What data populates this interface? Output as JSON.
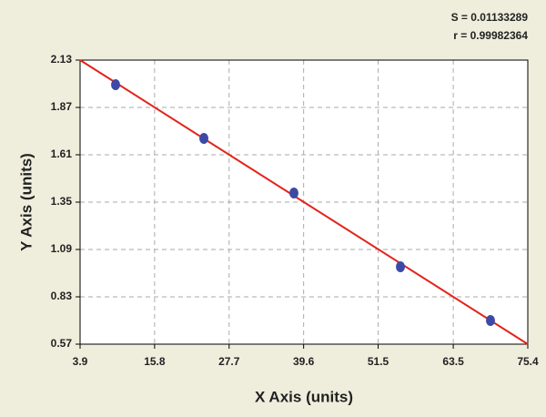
{
  "chart_data": {
    "type": "scatter",
    "xlabel": "X Axis (units)",
    "ylabel": "Y Axis (units)",
    "annotations": [
      "S = 0.01133289",
      "r = 0.99982364"
    ],
    "xlim": [
      3.9,
      75.4
    ],
    "xticks": [
      3.9,
      15.8,
      27.7,
      39.6,
      51.5,
      63.5,
      75.4
    ],
    "ylim": [
      0.57,
      2.13
    ],
    "yticks": [
      2.13,
      1.87,
      1.61,
      1.35,
      1.09,
      0.83,
      0.57
    ],
    "grid": true,
    "series": [
      {
        "type": "scatter",
        "color": "#3c4aa6",
        "x": [
          9.57,
          23.67,
          38.05,
          55.06,
          69.44
        ],
        "values": [
          1.995,
          1.7,
          1.4,
          0.995,
          0.7
        ]
      },
      {
        "type": "line",
        "color": "#e3231b",
        "x": [
          3.9,
          75.4
        ],
        "values": [
          2.13,
          0.57
        ]
      }
    ]
  }
}
